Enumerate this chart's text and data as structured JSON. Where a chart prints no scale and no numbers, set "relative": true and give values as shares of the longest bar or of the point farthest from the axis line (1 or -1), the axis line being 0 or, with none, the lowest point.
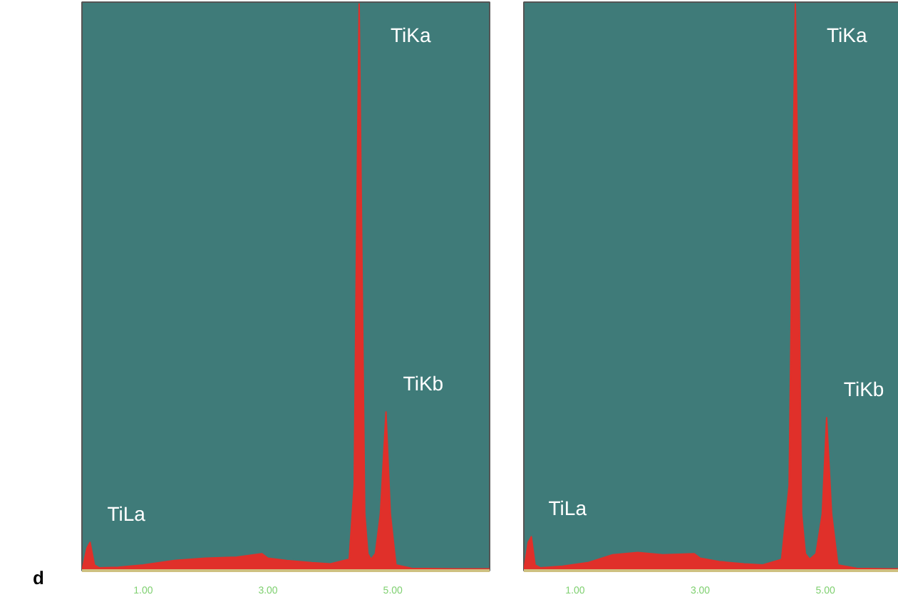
{
  "chart_data": [
    {
      "type": "area",
      "relative": true,
      "xlim": [
        0.02,
        6.55
      ],
      "xticks": [
        {
          "value": 1.0,
          "label": "1.00"
        },
        {
          "value": 3.0,
          "label": "3.00"
        },
        {
          "value": 5.0,
          "label": "5.00"
        }
      ],
      "grid": false,
      "x": [
        0.02,
        0.1,
        0.15,
        0.22,
        0.3,
        0.6,
        1.0,
        1.5,
        2.0,
        2.5,
        2.9,
        3.0,
        3.3,
        3.7,
        4.0,
        4.3,
        4.38,
        4.42,
        4.46,
        4.5,
        4.55,
        4.6,
        4.65,
        4.72,
        4.8,
        4.89,
        4.96,
        5.05,
        5.3,
        6.0,
        6.55
      ],
      "series": [
        {
          "color": "#e0302a",
          "values": [
            0.0,
            0.04,
            0.05,
            0.01,
            0.005,
            0.006,
            0.01,
            0.018,
            0.022,
            0.024,
            0.03,
            0.022,
            0.018,
            0.014,
            0.012,
            0.02,
            0.15,
            0.6,
            1.0,
            0.6,
            0.1,
            0.03,
            0.02,
            0.03,
            0.1,
            0.28,
            0.1,
            0.01,
            0.004,
            0.003,
            0.003
          ]
        }
      ],
      "annotations": [
        {
          "text": "TiKa",
          "x": 4.46,
          "y": 1.0
        },
        {
          "text": "TiKb",
          "x": 4.89,
          "y": 0.28
        },
        {
          "text": "TiLa",
          "x": 0.15,
          "y": 0.05
        },
        "d"
      ]
    },
    {
      "type": "area",
      "relative": true,
      "xlim": [
        0.18,
        6.4
      ],
      "xticks": [
        {
          "value": 1.0,
          "label": "1.00"
        },
        {
          "value": 3.0,
          "label": "3.00"
        },
        {
          "value": 5.0,
          "label": "5.00"
        }
      ],
      "grid": false,
      "x": [
        0.18,
        0.25,
        0.3,
        0.36,
        0.45,
        0.8,
        1.2,
        1.6,
        2.0,
        2.4,
        2.9,
        3.0,
        3.3,
        3.7,
        4.0,
        4.3,
        4.42,
        4.47,
        4.52,
        4.57,
        4.62,
        4.68,
        4.75,
        4.85,
        4.95,
        5.02,
        5.1,
        5.2,
        5.5,
        6.0,
        6.4
      ],
      "series": [
        {
          "color": "#e0302a",
          "values": [
            0.0,
            0.05,
            0.06,
            0.01,
            0.005,
            0.008,
            0.014,
            0.028,
            0.032,
            0.028,
            0.03,
            0.022,
            0.016,
            0.012,
            0.01,
            0.02,
            0.15,
            0.6,
            1.0,
            0.6,
            0.1,
            0.03,
            0.02,
            0.03,
            0.1,
            0.27,
            0.1,
            0.01,
            0.004,
            0.003,
            0.003
          ]
        }
      ],
      "annotations": [
        {
          "text": "TiKa",
          "x": 4.52,
          "y": 1.0
        },
        {
          "text": "TiKb",
          "x": 5.02,
          "y": 0.27
        },
        {
          "text": "TiLa",
          "x": 0.3,
          "y": 0.06
        }
      ]
    }
  ]
}
